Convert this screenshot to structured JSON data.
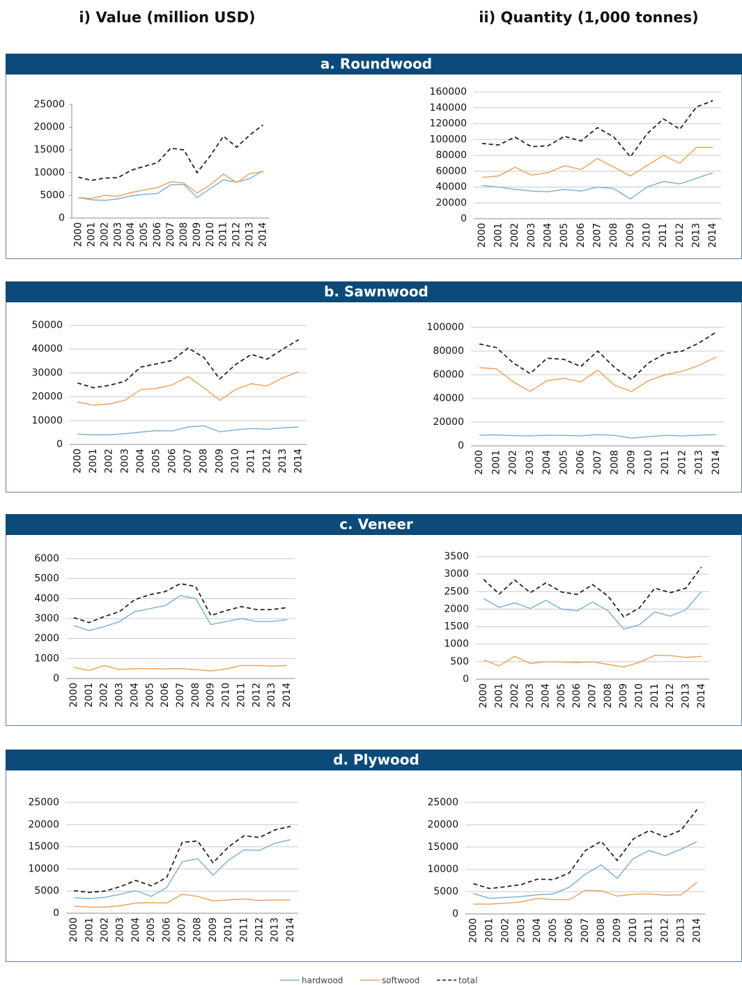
{
  "columns": [
    "i) Value (million USD)",
    "ii) Quantity (1,000 tonnes)"
  ],
  "sections": [
    "a. Roundwood",
    "b. Sawnwood",
    "c. Veneer",
    "d. Plywood"
  ],
  "legend": [
    {
      "name": "hardwood",
      "color": "#7fb2d9",
      "dashed": false
    },
    {
      "name": "softwood",
      "color": "#f0a35e",
      "dashed": false
    },
    {
      "name": "total",
      "color": "#222222",
      "dashed": true
    }
  ],
  "chart_data": [
    {
      "type": "line",
      "categories": [
        "2000",
        "2001",
        "2002",
        "2003",
        "2004",
        "2005",
        "2006",
        "2007",
        "2008",
        "2009",
        "2010",
        "2011",
        "2012",
        "2013",
        "2014"
      ],
      "ylim": [
        0,
        25000
      ],
      "yticks": [
        0,
        5000,
        10000,
        15000,
        20000,
        25000
      ],
      "grid": false,
      "series": [
        {
          "values": [
            4500,
            4000,
            3900,
            4200,
            4900,
            5200,
            5400,
            7300,
            7400,
            4500,
            6500,
            8400,
            7900,
            8700,
            10400
          ]
        },
        {
          "values": [
            4500,
            4300,
            5000,
            4800,
            5600,
            6200,
            6700,
            8000,
            7700,
            5500,
            7300,
            9700,
            7800,
            9800,
            10200
          ]
        },
        {
          "values": [
            9000,
            8300,
            8800,
            8900,
            10500,
            11400,
            12200,
            15400,
            15000,
            10000,
            13700,
            18000,
            15600,
            18300,
            20500
          ]
        }
      ]
    },
    {
      "type": "line",
      "categories": [
        "2000",
        "2001",
        "2002",
        "2003",
        "2004",
        "2005",
        "2006",
        "2007",
        "2008",
        "2009",
        "2010",
        "2011",
        "2012",
        "2013",
        "2014"
      ],
      "ylim": [
        0,
        160000
      ],
      "yticks": [
        0,
        20000,
        40000,
        60000,
        80000,
        100000,
        120000,
        140000,
        160000
      ],
      "grid": true,
      "series": [
        {
          "values": [
            42000,
            40000,
            37000,
            35000,
            34000,
            37000,
            35000,
            40000,
            38000,
            25000,
            40000,
            47000,
            44000,
            51000,
            58000
          ]
        },
        {
          "values": [
            52000,
            54000,
            65000,
            55000,
            58000,
            67000,
            62000,
            76000,
            65000,
            54000,
            67000,
            80000,
            70000,
            90000,
            90000
          ]
        },
        {
          "values": [
            95000,
            93000,
            103000,
            91000,
            92000,
            104000,
            98000,
            115000,
            103000,
            78000,
            107000,
            126000,
            113000,
            141000,
            149000
          ]
        }
      ]
    },
    {
      "type": "line",
      "categories": [
        "2000",
        "2001",
        "2002",
        "2003",
        "2004",
        "2005",
        "2006",
        "2007",
        "2008",
        "2009",
        "2010",
        "2011",
        "2012",
        "2013",
        "2014"
      ],
      "ylim": [
        0,
        50000
      ],
      "yticks": [
        0,
        10000,
        20000,
        30000,
        40000,
        50000
      ],
      "grid": true,
      "series": [
        {
          "values": [
            4300,
            4000,
            4000,
            4500,
            5200,
            5800,
            5700,
            7300,
            7800,
            5300,
            6100,
            6700,
            6400,
            7000,
            7300
          ]
        },
        {
          "values": [
            17800,
            16500,
            17000,
            18500,
            23000,
            23500,
            25000,
            28500,
            23800,
            18500,
            23000,
            25500,
            24500,
            28000,
            30500
          ]
        },
        {
          "values": [
            25800,
            23800,
            24800,
            26500,
            32500,
            33800,
            35300,
            40500,
            36500,
            27500,
            33500,
            37800,
            35800,
            40000,
            44000
          ]
        }
      ]
    },
    {
      "type": "line",
      "categories": [
        "2000",
        "2001",
        "2002",
        "2003",
        "2004",
        "2005",
        "2006",
        "2007",
        "2008",
        "2009",
        "2010",
        "2011",
        "2012",
        "2013",
        "2014"
      ],
      "ylim": [
        0,
        100000
      ],
      "yticks": [
        0,
        20000,
        40000,
        60000,
        80000,
        100000
      ],
      "grid": true,
      "series": [
        {
          "values": [
            9000,
            9200,
            8700,
            8400,
            9000,
            8800,
            8400,
            9500,
            8800,
            6500,
            7800,
            8800,
            8400,
            9000,
            9600
          ]
        },
        {
          "values": [
            66000,
            65000,
            54000,
            46000,
            55000,
            57000,
            54000,
            64000,
            51000,
            46000,
            55000,
            60000,
            63000,
            68000,
            75000
          ]
        },
        {
          "values": [
            86000,
            83000,
            70000,
            61000,
            74000,
            73000,
            67000,
            80000,
            66000,
            56000,
            70000,
            78000,
            80000,
            87000,
            96000
          ]
        }
      ]
    },
    {
      "type": "line",
      "categories": [
        "2000",
        "2001",
        "2002",
        "2003",
        "2004",
        "2005",
        "2006",
        "2007",
        "2008",
        "2009",
        "2010",
        "2011",
        "2012",
        "2013",
        "2014"
      ],
      "ylim": [
        0,
        6000
      ],
      "yticks": [
        0,
        1000,
        2000,
        3000,
        4000,
        5000,
        6000
      ],
      "grid": true,
      "series": [
        {
          "values": [
            2650,
            2400,
            2600,
            2850,
            3350,
            3500,
            3650,
            4150,
            4000,
            2700,
            2850,
            3000,
            2850,
            2850,
            2950
          ]
        },
        {
          "values": [
            550,
            400,
            650,
            450,
            500,
            500,
            480,
            500,
            450,
            380,
            480,
            650,
            650,
            620,
            650
          ]
        },
        {
          "values": [
            3050,
            2800,
            3100,
            3350,
            3950,
            4200,
            4350,
            4750,
            4600,
            3150,
            3400,
            3600,
            3450,
            3450,
            3550
          ]
        }
      ]
    },
    {
      "type": "line",
      "categories": [
        "2000",
        "2001",
        "2002",
        "2003",
        "2004",
        "2005",
        "2006",
        "2007",
        "2008",
        "2009",
        "2010",
        "2011",
        "2012",
        "2013",
        "2014"
      ],
      "ylim": [
        0,
        3500
      ],
      "yticks": [
        0,
        500,
        1000,
        1500,
        2000,
        2500,
        3000,
        3500
      ],
      "grid": true,
      "series": [
        {
          "values": [
            2300,
            2050,
            2180,
            2020,
            2250,
            2000,
            1950,
            2200,
            1950,
            1430,
            1550,
            1920,
            1800,
            1980,
            2500
          ]
        },
        {
          "values": [
            550,
            380,
            650,
            450,
            500,
            490,
            470,
            500,
            420,
            350,
            480,
            680,
            670,
            620,
            650
          ]
        },
        {
          "values": [
            2850,
            2430,
            2830,
            2470,
            2750,
            2490,
            2420,
            2700,
            2370,
            1780,
            2030,
            2600,
            2470,
            2600,
            3200
          ]
        }
      ]
    },
    {
      "type": "line",
      "categories": [
        "2000",
        "2001",
        "2002",
        "2003",
        "2004",
        "2005",
        "2006",
        "2007",
        "2008",
        "2009",
        "2010",
        "2011",
        "2012",
        "2013",
        "2014"
      ],
      "ylim": [
        0,
        25000
      ],
      "yticks": [
        0,
        5000,
        10000,
        15000,
        20000,
        25000
      ],
      "grid": true,
      "series": [
        {
          "values": [
            3500,
            3300,
            3600,
            4300,
            5100,
            3800,
            5800,
            11600,
            12300,
            8600,
            12000,
            14300,
            14200,
            15800,
            16600
          ]
        },
        {
          "values": [
            1600,
            1400,
            1400,
            1700,
            2300,
            2400,
            2300,
            4300,
            3800,
            2800,
            3000,
            3200,
            2900,
            3000,
            3000
          ]
        },
        {
          "values": [
            5100,
            4700,
            5000,
            6000,
            7400,
            6200,
            8100,
            16000,
            16300,
            11400,
            15000,
            17500,
            17100,
            18800,
            19600
          ]
        }
      ]
    },
    {
      "type": "line",
      "categories": [
        "2000",
        "2001",
        "2002",
        "2003",
        "2004",
        "2005",
        "2006",
        "2007",
        "2008",
        "2009",
        "2010",
        "2011",
        "2012",
        "2013",
        "2014"
      ],
      "ylim": [
        0,
        25000
      ],
      "yticks": [
        0,
        5000,
        10000,
        15000,
        20000,
        25000
      ],
      "grid": true,
      "series": [
        {
          "values": [
            4600,
            3500,
            3700,
            3900,
            4300,
            4500,
            6000,
            8900,
            11000,
            8000,
            12400,
            14200,
            13100,
            14500,
            16200
          ]
        },
        {
          "values": [
            2200,
            2200,
            2400,
            2700,
            3500,
            3200,
            3200,
            5300,
            5200,
            4000,
            4400,
            4500,
            4200,
            4300,
            7100
          ]
        },
        {
          "values": [
            6800,
            5700,
            6100,
            6600,
            7800,
            7700,
            9200,
            14200,
            16300,
            12000,
            16800,
            18700,
            17300,
            18800,
            23400
          ]
        }
      ]
    }
  ]
}
